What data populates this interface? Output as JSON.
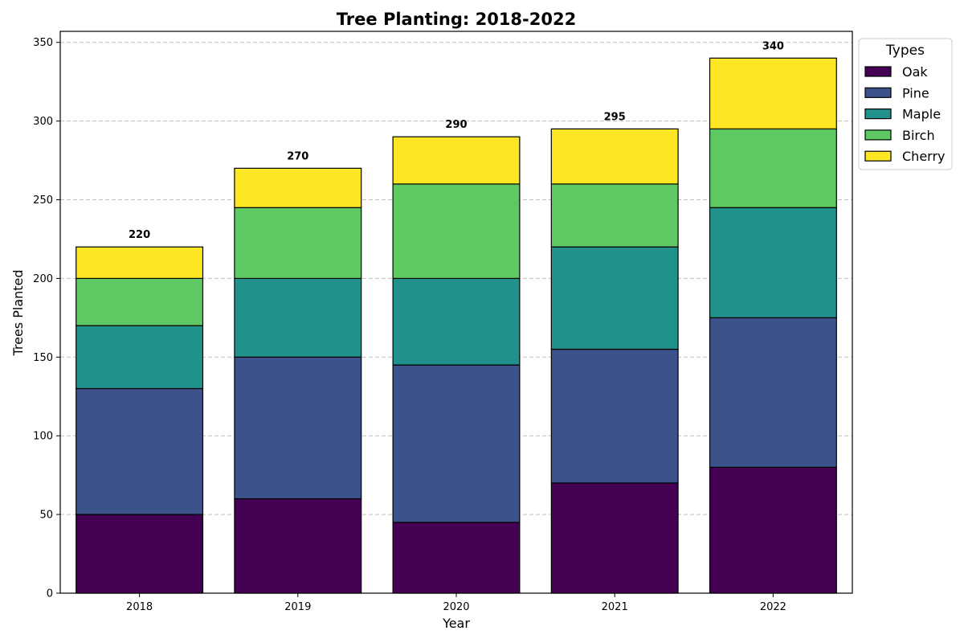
{
  "chart_data": {
    "type": "bar",
    "stacked": true,
    "title": "Tree Planting: 2018-2022",
    "xlabel": "Year",
    "ylabel": "Trees Planted",
    "categories": [
      "2018",
      "2019",
      "2020",
      "2021",
      "2022"
    ],
    "ylim": [
      0,
      357
    ],
    "yticks": [
      0,
      50,
      100,
      150,
      200,
      250,
      300,
      350
    ],
    "grid": "y-dashed",
    "legend": {
      "title": "Types",
      "placement": "outside-top-right"
    },
    "series": [
      {
        "name": "Oak",
        "color": "#440154",
        "values": [
          50,
          60,
          45,
          70,
          80
        ]
      },
      {
        "name": "Pine",
        "color": "#3b528b",
        "values": [
          80,
          90,
          100,
          85,
          95
        ]
      },
      {
        "name": "Maple",
        "color": "#21918c",
        "values": [
          40,
          50,
          55,
          65,
          70
        ]
      },
      {
        "name": "Birch",
        "color": "#5ec962",
        "values": [
          30,
          45,
          60,
          40,
          50
        ]
      },
      {
        "name": "Cherry",
        "color": "#fde725",
        "values": [
          20,
          25,
          30,
          35,
          45
        ]
      }
    ],
    "totals": [
      "220",
      "270",
      "290",
      "295",
      "340"
    ]
  }
}
